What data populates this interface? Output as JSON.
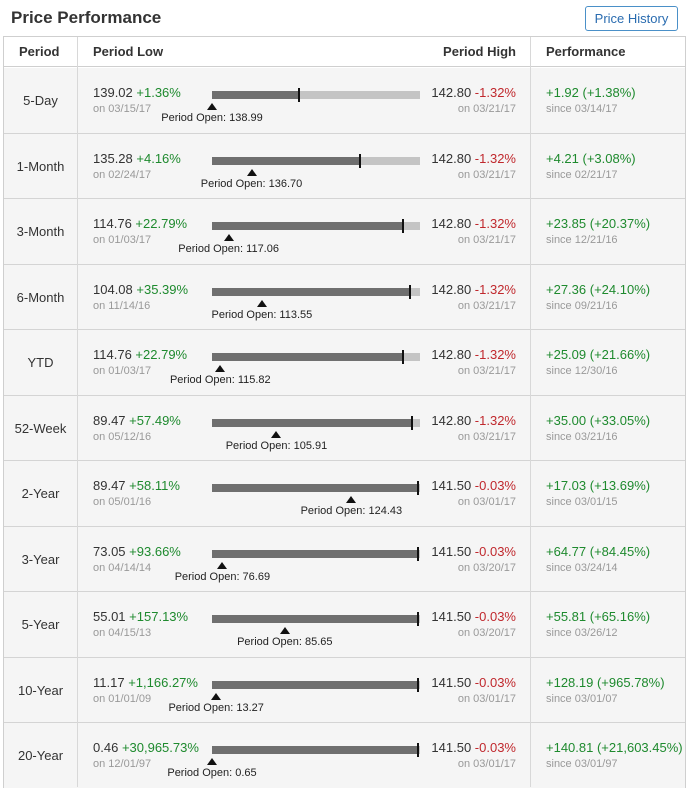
{
  "header": {
    "title": "Price Performance",
    "history_button": "Price History"
  },
  "columns": {
    "period": "Period",
    "low": "Period Low",
    "high": "Period High",
    "performance": "Performance"
  },
  "rows": [
    {
      "period": "5-Day",
      "low": "139.02",
      "low_chg": "+1.36%",
      "low_date": "on 03/15/17",
      "high": "142.80",
      "high_chg": "-1.32%",
      "high_date": "on 03/21/17",
      "open_label": "Period Open: 138.99",
      "last_pct": 0.42,
      "open_pct": 0.0,
      "perf": "+1.92 (+1.38%)",
      "perf_date": "since 03/14/17"
    },
    {
      "period": "1-Month",
      "low": "135.28",
      "low_chg": "+4.16%",
      "low_date": "on 02/24/17",
      "high": "142.80",
      "high_chg": "-1.32%",
      "high_date": "on 03/21/17",
      "open_label": "Period Open: 136.70",
      "last_pct": 0.71,
      "open_pct": 0.19,
      "perf": "+4.21 (+3.08%)",
      "perf_date": "since 02/21/17"
    },
    {
      "period": "3-Month",
      "low": "114.76",
      "low_chg": "+22.79%",
      "low_date": "on 01/03/17",
      "high": "142.80",
      "high_chg": "-1.32%",
      "high_date": "on 03/21/17",
      "open_label": "Period Open: 117.06",
      "last_pct": 0.92,
      "open_pct": 0.08,
      "perf": "+23.85 (+20.37%)",
      "perf_date": "since 12/21/16"
    },
    {
      "period": "6-Month",
      "low": "104.08",
      "low_chg": "+35.39%",
      "low_date": "on 11/14/16",
      "high": "142.80",
      "high_chg": "-1.32%",
      "high_date": "on 03/21/17",
      "open_label": "Period Open: 113.55",
      "last_pct": 0.95,
      "open_pct": 0.24,
      "perf": "+27.36 (+24.10%)",
      "perf_date": "since 09/21/16"
    },
    {
      "period": "YTD",
      "low": "114.76",
      "low_chg": "+22.79%",
      "low_date": "on 01/03/17",
      "high": "142.80",
      "high_chg": "-1.32%",
      "high_date": "on 03/21/17",
      "open_label": "Period Open: 115.82",
      "last_pct": 0.92,
      "open_pct": 0.04,
      "perf": "+25.09 (+21.66%)",
      "perf_date": "since 12/30/16"
    },
    {
      "period": "52-Week",
      "low": "89.47",
      "low_chg": "+57.49%",
      "low_date": "on 05/12/16",
      "high": "142.80",
      "high_chg": "-1.32%",
      "high_date": "on 03/21/17",
      "open_label": "Period Open: 105.91",
      "last_pct": 0.96,
      "open_pct": 0.31,
      "perf": "+35.00 (+33.05%)",
      "perf_date": "since 03/21/16"
    },
    {
      "period": "2-Year",
      "low": "89.47",
      "low_chg": "+58.11%",
      "low_date": "on 05/01/16",
      "high": "141.50",
      "high_chg": "-0.03%",
      "high_date": "on 03/01/17",
      "open_label": "Period Open: 124.43",
      "last_pct": 0.99,
      "open_pct": 0.67,
      "perf": "+17.03 (+13.69%)",
      "perf_date": "since 03/01/15"
    },
    {
      "period": "3-Year",
      "low": "73.05",
      "low_chg": "+93.66%",
      "low_date": "on 04/14/14",
      "high": "141.50",
      "high_chg": "-0.03%",
      "high_date": "on 03/20/17",
      "open_label": "Period Open: 76.69",
      "last_pct": 0.99,
      "open_pct": 0.05,
      "perf": "+64.77 (+84.45%)",
      "perf_date": "since 03/24/14"
    },
    {
      "period": "5-Year",
      "low": "55.01",
      "low_chg": "+157.13%",
      "low_date": "on 04/15/13",
      "high": "141.50",
      "high_chg": "-0.03%",
      "high_date": "on 03/20/17",
      "open_label": "Period Open: 85.65",
      "last_pct": 0.99,
      "open_pct": 0.35,
      "perf": "+55.81 (+65.16%)",
      "perf_date": "since 03/26/12"
    },
    {
      "period": "10-Year",
      "low": "11.17",
      "low_chg": "+1,166.27%",
      "low_date": "on 01/01/09",
      "high": "141.50",
      "high_chg": "-0.03%",
      "high_date": "on 03/01/17",
      "open_label": "Period Open: 13.27",
      "last_pct": 0.99,
      "open_pct": 0.02,
      "perf": "+128.19 (+965.78%)",
      "perf_date": "since 03/01/07"
    },
    {
      "period": "20-Year",
      "low": "0.46",
      "low_chg": "+30,965.73%",
      "low_date": "on 12/01/97",
      "high": "141.50",
      "high_chg": "-0.03%",
      "high_date": "on 03/01/17",
      "open_label": "Period Open: 0.65",
      "last_pct": 0.99,
      "open_pct": 0.0,
      "perf": "+140.81 (+21,603.45%)",
      "perf_date": "since 03/01/97"
    }
  ]
}
